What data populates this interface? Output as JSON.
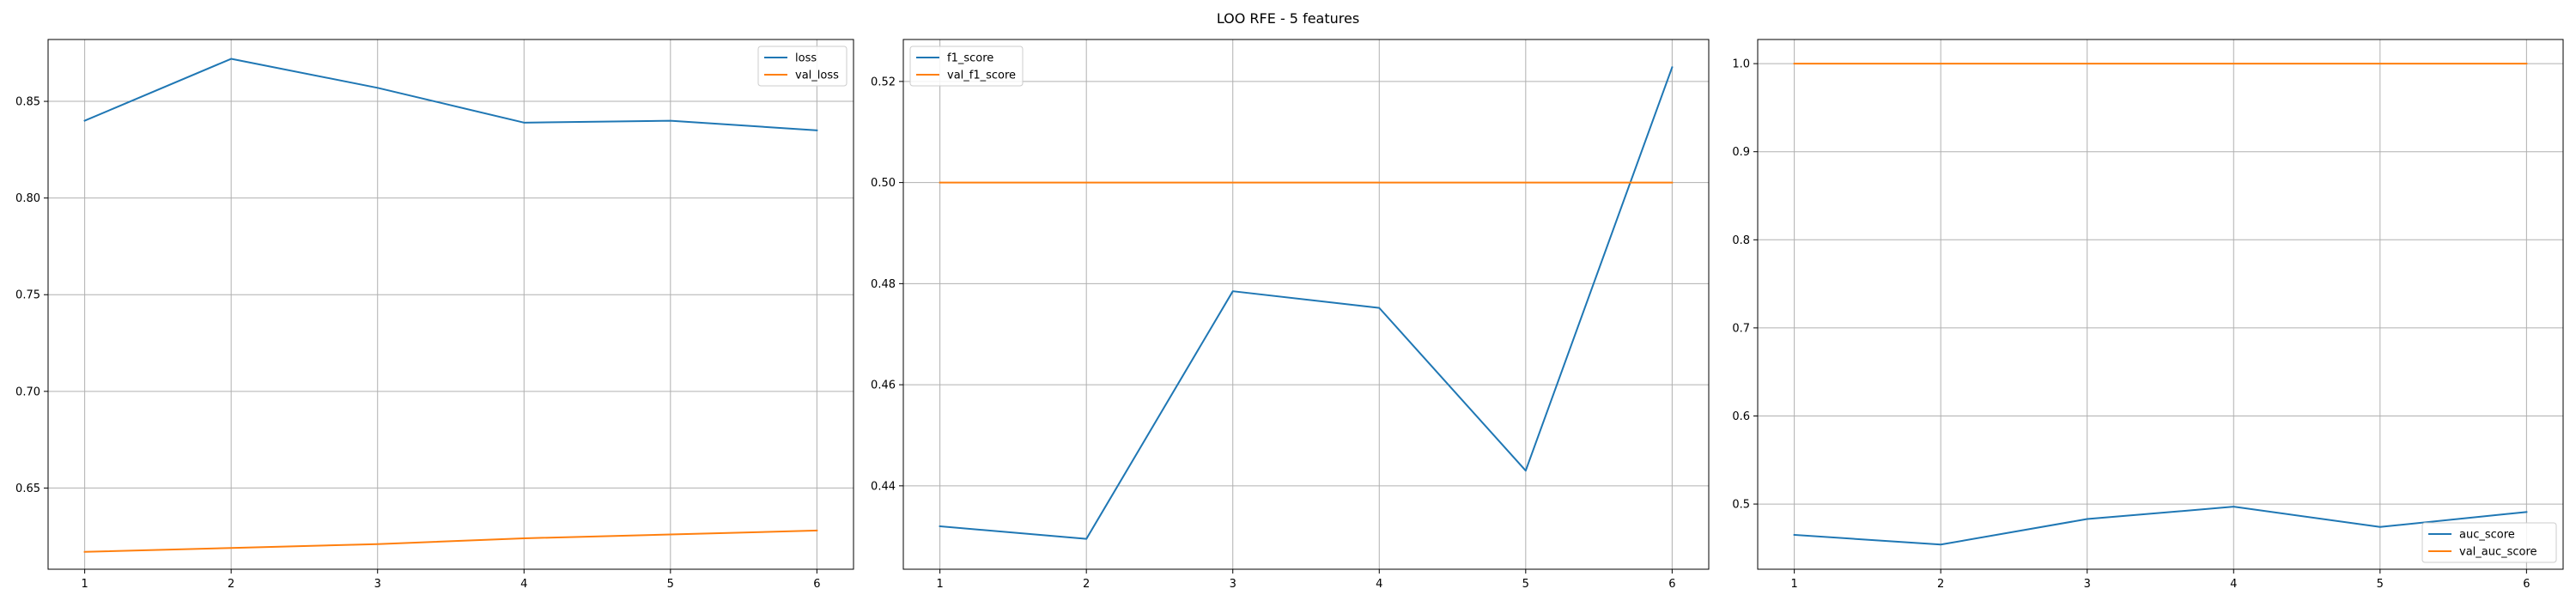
{
  "title": "LOO RFE - 5 features",
  "colors": {
    "series_1": "#1f77b4",
    "series_2": "#ff7f0e",
    "grid": "#b0b0b0",
    "axes": "#000000"
  },
  "chart_data": [
    {
      "type": "line",
      "x": [
        1,
        2,
        3,
        4,
        5,
        6
      ],
      "xlim": [
        0.75,
        6.25
      ],
      "ylim": [
        0.608,
        0.882
      ],
      "xticks": [
        1,
        2,
        3,
        4,
        5,
        6
      ],
      "yticks": [
        0.65,
        0.7,
        0.75,
        0.8,
        0.85
      ],
      "ytick_labels": [
        "0.65",
        "0.70",
        "0.75",
        "0.80",
        "0.85"
      ],
      "grid": true,
      "legend_position": "top-right",
      "series": [
        {
          "name": "loss",
          "color": "#1f77b4",
          "values": [
            0.84,
            0.872,
            0.857,
            0.839,
            0.84,
            0.835
          ]
        },
        {
          "name": "val_loss",
          "color": "#ff7f0e",
          "values": [
            0.617,
            0.619,
            0.621,
            0.624,
            0.626,
            0.628
          ]
        }
      ]
    },
    {
      "type": "line",
      "x": [
        1,
        2,
        3,
        4,
        5,
        6
      ],
      "xlim": [
        0.75,
        6.25
      ],
      "ylim": [
        0.4235,
        0.5283
      ],
      "xticks": [
        1,
        2,
        3,
        4,
        5,
        6
      ],
      "yticks": [
        0.44,
        0.46,
        0.48,
        0.5,
        0.52
      ],
      "ytick_labels": [
        "0.44",
        "0.46",
        "0.48",
        "0.50",
        "0.52"
      ],
      "grid": true,
      "legend_position": "top-left",
      "series": [
        {
          "name": "f1_score",
          "color": "#1f77b4",
          "values": [
            0.432,
            0.4295,
            0.4785,
            0.4752,
            0.443,
            0.5228
          ]
        },
        {
          "name": "val_f1_score",
          "color": "#ff7f0e",
          "values": [
            0.5,
            0.5,
            0.5,
            0.5,
            0.5,
            0.5
          ]
        }
      ]
    },
    {
      "type": "line",
      "x": [
        1,
        2,
        3,
        4,
        5,
        6
      ],
      "xlim": [
        0.75,
        6.25
      ],
      "ylim": [
        0.426,
        1.0274
      ],
      "xticks": [
        1,
        2,
        3,
        4,
        5,
        6
      ],
      "yticks": [
        0.5,
        0.6,
        0.7,
        0.8,
        0.9,
        1.0
      ],
      "ytick_labels": [
        "0.5",
        "0.6",
        "0.7",
        "0.8",
        "0.9",
        "1.0"
      ],
      "grid": true,
      "legend_position": "bottom-right",
      "series": [
        {
          "name": "auc_score",
          "color": "#1f77b4",
          "values": [
            0.465,
            0.454,
            0.483,
            0.497,
            0.474,
            0.491
          ]
        },
        {
          "name": "val_auc_score",
          "color": "#ff7f0e",
          "values": [
            1.0,
            1.0,
            1.0,
            1.0,
            1.0,
            1.0
          ]
        }
      ]
    }
  ]
}
